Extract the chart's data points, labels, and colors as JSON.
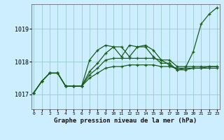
{
  "background_color": "#cceeff",
  "grid_color": "#99cccc",
  "line_color": "#1a5c1a",
  "title": "Graphe pression niveau de la mer (hPa)",
  "xlabel_ticks": [
    0,
    1,
    2,
    3,
    4,
    5,
    6,
    7,
    8,
    9,
    10,
    11,
    12,
    13,
    14,
    15,
    16,
    17,
    18,
    19,
    20,
    21,
    22,
    23
  ],
  "yticks": [
    1017,
    1018,
    1019
  ],
  "ylim": [
    1016.55,
    1019.75
  ],
  "xlim": [
    -0.3,
    23.3
  ],
  "series": [
    [
      1017.05,
      1017.4,
      1017.65,
      1017.65,
      1017.25,
      1017.25,
      1017.25,
      1018.05,
      1018.35,
      1018.5,
      1018.45,
      1018.15,
      1018.5,
      1018.45,
      1018.5,
      1018.35,
      1018.05,
      1017.9,
      1017.75,
      1017.8,
      1018.3,
      1019.15,
      1019.45,
      1019.65
    ],
    [
      1017.05,
      1017.4,
      1017.65,
      1017.65,
      1017.25,
      1017.25,
      1017.25,
      1017.7,
      1017.95,
      1018.25,
      1018.45,
      1018.45,
      1018.15,
      1018.45,
      1018.45,
      1018.15,
      1017.95,
      1017.95,
      1017.75,
      1017.75,
      1017.8,
      1017.8,
      1017.85,
      1017.85
    ],
    [
      1017.05,
      1017.4,
      1017.65,
      1017.65,
      1017.25,
      1017.25,
      1017.25,
      1017.6,
      1017.8,
      1018.05,
      1018.1,
      1018.1,
      1018.1,
      1018.1,
      1018.1,
      1018.1,
      1018.05,
      1018.05,
      1017.85,
      1017.85,
      1017.85,
      1017.85,
      1017.85,
      1017.85
    ],
    [
      1017.05,
      1017.4,
      1017.65,
      1017.65,
      1017.25,
      1017.25,
      1017.25,
      1017.5,
      1017.65,
      1017.8,
      1017.85,
      1017.85,
      1017.9,
      1017.9,
      1017.9,
      1017.9,
      1017.85,
      1017.85,
      1017.8,
      1017.8,
      1017.8,
      1017.8,
      1017.8,
      1017.8
    ]
  ]
}
